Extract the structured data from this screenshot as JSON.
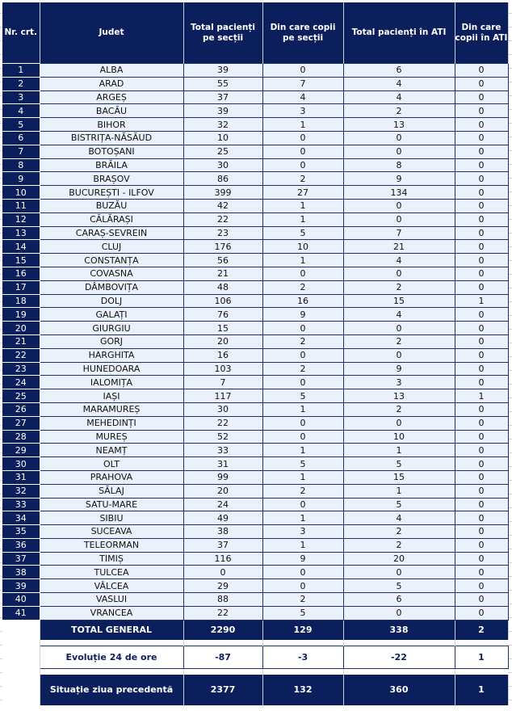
{
  "headers": [
    "Nr. crt.",
    "Judet",
    "Total pacienți pe secții",
    "Din care copii pe secții",
    "Total pacienți în ATI",
    "Din care copii în ATI"
  ],
  "rows": [
    [
      "1",
      "ALBA",
      "39",
      "0",
      "6",
      "0"
    ],
    [
      "2",
      "ARAD",
      "55",
      "7",
      "4",
      "0"
    ],
    [
      "3",
      "ARGEȘ",
      "37",
      "4",
      "4",
      "0"
    ],
    [
      "4",
      "BACĂU",
      "39",
      "3",
      "2",
      "0"
    ],
    [
      "5",
      "BIHOR",
      "32",
      "1",
      "13",
      "0"
    ],
    [
      "6",
      "BISTRIȚA-NĂSĂUD",
      "10",
      "0",
      "0",
      "0"
    ],
    [
      "7",
      "BOTOȘANI",
      "25",
      "0",
      "0",
      "0"
    ],
    [
      "8",
      "BRĂILA",
      "30",
      "0",
      "8",
      "0"
    ],
    [
      "9",
      "BRAȘOV",
      "86",
      "2",
      "9",
      "0"
    ],
    [
      "10",
      "BUCUREȘTI - ILFOV",
      "399",
      "27",
      "134",
      "0"
    ],
    [
      "11",
      "BUZĂU",
      "42",
      "1",
      "0",
      "0"
    ],
    [
      "12",
      "CĂLĂRAȘI",
      "22",
      "1",
      "0",
      "0"
    ],
    [
      "13",
      "CARAȘ-SEVREIN",
      "23",
      "5",
      "7",
      "0"
    ],
    [
      "14",
      "CLUJ",
      "176",
      "10",
      "21",
      "0"
    ],
    [
      "15",
      "CONSTANȚA",
      "56",
      "1",
      "4",
      "0"
    ],
    [
      "16",
      "COVASNA",
      "21",
      "0",
      "0",
      "0"
    ],
    [
      "17",
      "DÂMBOVIȚA",
      "48",
      "2",
      "2",
      "0"
    ],
    [
      "18",
      "DOLJ",
      "106",
      "16",
      "15",
      "1"
    ],
    [
      "19",
      "GALAȚI",
      "76",
      "9",
      "4",
      "0"
    ],
    [
      "20",
      "GIURGIU",
      "15",
      "0",
      "0",
      "0"
    ],
    [
      "21",
      "GORJ",
      "20",
      "2",
      "2",
      "0"
    ],
    [
      "22",
      "HARGHITA",
      "16",
      "0",
      "0",
      "0"
    ],
    [
      "23",
      "HUNEDOARA",
      "103",
      "2",
      "9",
      "0"
    ],
    [
      "24",
      "IALOMIȚA",
      "7",
      "0",
      "3",
      "0"
    ],
    [
      "25",
      "IAȘI",
      "117",
      "5",
      "13",
      "1"
    ],
    [
      "26",
      "MARAMUREȘ",
      "30",
      "1",
      "2",
      "0"
    ],
    [
      "27",
      "MEHEDINȚI",
      "22",
      "0",
      "0",
      "0"
    ],
    [
      "28",
      "MUREȘ",
      "52",
      "0",
      "10",
      "0"
    ],
    [
      "29",
      "NEAMȚ",
      "33",
      "1",
      "1",
      "0"
    ],
    [
      "30",
      "OLT",
      "31",
      "5",
      "5",
      "0"
    ],
    [
      "31",
      "PRAHOVA",
      "99",
      "1",
      "15",
      "0"
    ],
    [
      "32",
      "SĂLAJ",
      "20",
      "2",
      "1",
      "0"
    ],
    [
      "33",
      "SATU-MARE",
      "24",
      "0",
      "5",
      "0"
    ],
    [
      "34",
      "SIBIU",
      "49",
      "1",
      "4",
      "0"
    ],
    [
      "35",
      "SUCEAVA",
      "38",
      "3",
      "2",
      "0"
    ],
    [
      "36",
      "TELEORMAN",
      "37",
      "1",
      "2",
      "0"
    ],
    [
      "37",
      "TIMIȘ",
      "116",
      "9",
      "20",
      "0"
    ],
    [
      "38",
      "TULCEA",
      "0",
      "0",
      "0",
      "0"
    ],
    [
      "39",
      "VÂLCEA",
      "29",
      "0",
      "5",
      "0"
    ],
    [
      "40",
      "VASLUI",
      "88",
      "2",
      "6",
      "0"
    ],
    [
      "41",
      "VRANCEA",
      "22",
      "5",
      "0",
      "0"
    ]
  ],
  "total": [
    "TOTAL GENERAL",
    "2290",
    "129",
    "338",
    "2"
  ],
  "evolution": [
    "Evoluție 24 de ore",
    "-87",
    "-3",
    "-22",
    "1"
  ],
  "previous": [
    "Situație ziua precedentă",
    "2377",
    "132",
    "360",
    "1"
  ],
  "colors": {
    "navy": "#0b1f5c",
    "row_bg": "#eaf1fb"
  }
}
